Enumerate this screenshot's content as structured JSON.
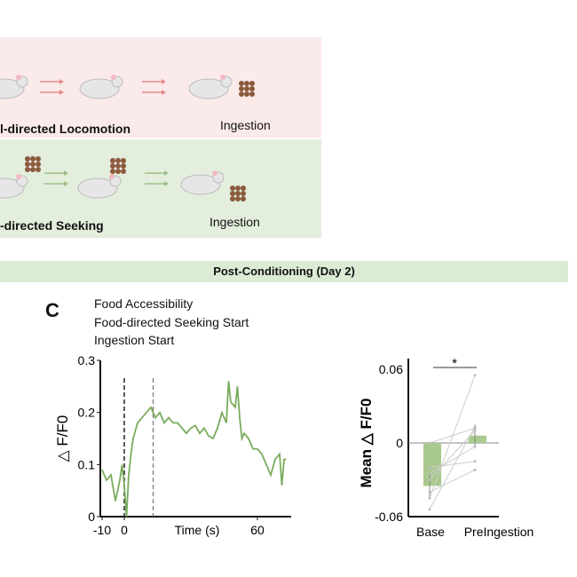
{
  "schematic": {
    "top_row": {
      "caption_left": "l-directed Locomotion",
      "caption_right": "Ingestion",
      "color": "#fbeaea",
      "arrow_color": "#e88a8a"
    },
    "bottom_row": {
      "caption_left": "-directed Seeking",
      "caption_right": "Ingestion",
      "color": "#e3eedd",
      "arrow_color": "#9cbf8a"
    }
  },
  "header": {
    "title": "Post-Conditioning (Day 2)"
  },
  "panel_letter": "C",
  "legend": [
    "Food Accessibility",
    "Food-directed Seeking Start",
    "Ingestion Start"
  ],
  "chart_data": [
    {
      "type": "line",
      "xlabel": "Time (s)",
      "ylabel": "△ F/F0",
      "xlim": [
        -10,
        75
      ],
      "ylim": [
        0,
        0.3
      ],
      "xticks": [
        "-10",
        "0",
        "60"
      ],
      "yticks": [
        "0",
        "0.1",
        "0.2",
        "0.3"
      ],
      "color": "#7aab5c",
      "vlines": [
        0,
        13
      ],
      "x": [
        -10,
        -8,
        -6,
        -4,
        -2,
        -1,
        0,
        1,
        2,
        3,
        4,
        6,
        8,
        10,
        12,
        14,
        16,
        18,
        20,
        22,
        24,
        26,
        28,
        30,
        32,
        34,
        36,
        38,
        40,
        42,
        44,
        46,
        47,
        48,
        50,
        51,
        52,
        53,
        54,
        56,
        58,
        60,
        62,
        64,
        66,
        68,
        70,
        71,
        72,
        73
      ],
      "y": [
        0.09,
        0.07,
        0.08,
        0.03,
        0.07,
        0.1,
        0.06,
        0.0,
        0.08,
        0.12,
        0.15,
        0.18,
        0.19,
        0.2,
        0.21,
        0.19,
        0.2,
        0.18,
        0.19,
        0.18,
        0.18,
        0.17,
        0.16,
        0.17,
        0.175,
        0.16,
        0.17,
        0.155,
        0.15,
        0.17,
        0.2,
        0.18,
        0.26,
        0.22,
        0.21,
        0.25,
        0.19,
        0.15,
        0.16,
        0.15,
        0.13,
        0.13,
        0.12,
        0.1,
        0.08,
        0.11,
        0.12,
        0.06,
        0.11,
        0.11
      ]
    },
    {
      "type": "bar",
      "ylabel": "Mean △ F/F0",
      "categories": [
        "Base",
        "PreIngestion"
      ],
      "values": [
        -0.035,
        0.006
      ],
      "errors": [
        0.01,
        0.009
      ],
      "ylim": [
        -0.06,
        0.06
      ],
      "yticks": [
        "-0.06",
        "0",
        "0.06"
      ],
      "color": "#a9c98e",
      "paired_points": [
        [
          -0.045,
          0.055
        ],
        [
          -0.054,
          0.013
        ],
        [
          -0.03,
          0.01
        ],
        [
          -0.025,
          -0.003
        ],
        [
          0.0,
          0.012
        ],
        [
          -0.04,
          -0.022
        ],
        [
          -0.02,
          -0.015
        ]
      ],
      "significance": "*"
    }
  ]
}
